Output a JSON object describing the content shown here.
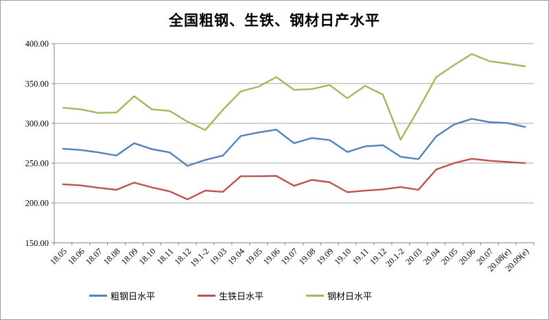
{
  "window": {
    "background": "#ffffff",
    "border_color": "#9a9a9a"
  },
  "chart_data": {
    "type": "line",
    "title": "全国粗钢、生铁、钢材日产水平",
    "categories": [
      "18.05",
      "18.06",
      "18.07",
      "18.08",
      "18.09",
      "18.10",
      "18.11",
      "18.12",
      "19.1-2",
      "19.03",
      "19.04",
      "19.05",
      "19.06",
      "19.07",
      "19.08",
      "19.09",
      "19.10",
      "19.11",
      "19.12",
      "20.1-2",
      "20.03",
      "20.04",
      "20.05",
      "20.06",
      "20.07",
      "20.08(e)",
      "20.09(e)"
    ],
    "series": [
      {
        "key": "crude-steel",
        "name": "粗钢日水平",
        "color": "#4F81BD",
        "values": [
          268,
          266.5,
          263.5,
          259.5,
          275,
          267.5,
          263.5,
          246.5,
          254,
          259.5,
          284,
          288.5,
          292,
          275,
          281.5,
          279,
          264,
          271,
          272.5,
          258,
          255,
          283.5,
          298.5,
          305.5,
          301.5,
          300.5,
          295.5
        ]
      },
      {
        "key": "pig-iron",
        "name": "生铁日水平",
        "color": "#C0504D",
        "values": [
          223.5,
          222,
          219,
          216.5,
          225.5,
          219.5,
          214.5,
          204.5,
          215.5,
          214,
          233.5,
          233.5,
          234,
          221.5,
          229,
          226,
          213.5,
          215.5,
          217,
          220,
          216.5,
          242,
          250,
          255.5,
          253,
          251.5,
          250
        ]
      },
      {
        "key": "steel-products",
        "name": "钢材日水平",
        "color": "#9BBB59",
        "values": [
          319.5,
          317.5,
          313,
          313.5,
          334,
          317.5,
          315.5,
          302,
          291.5,
          317,
          340,
          346,
          358,
          342,
          343,
          348,
          331.5,
          347,
          336,
          279.5,
          317.5,
          358,
          373,
          387,
          378,
          375,
          371.5
        ]
      }
    ],
    "ylim": [
      150,
      400
    ],
    "ytick_step": 50,
    "ytick_labels": [
      "150.00",
      "200.00",
      "250.00",
      "300.00",
      "350.00",
      "400.00"
    ],
    "grid": true,
    "legend_position": "bottom",
    "grid_color": "#A6A6A6",
    "axis_color": "#808080",
    "text_color": "#000000"
  }
}
